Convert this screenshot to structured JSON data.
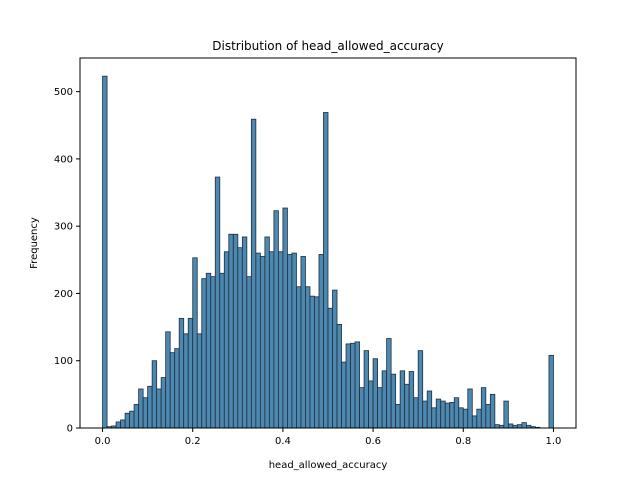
{
  "chart_data": {
    "type": "bar",
    "title": "Distribution of head_allowed_accuracy",
    "xlabel": "head_allowed_accuracy",
    "ylabel": "Frequency",
    "xlim": [
      -0.05,
      1.05
    ],
    "ylim": [
      0,
      550
    ],
    "xticks": [
      0.0,
      0.2,
      0.4,
      0.6,
      0.8,
      1.0
    ],
    "xtick_labels": [
      "0.0",
      "0.2",
      "0.4",
      "0.6",
      "0.8",
      "1.0"
    ],
    "yticks": [
      0,
      100,
      200,
      300,
      400,
      500
    ],
    "ytick_labels": [
      "0",
      "100",
      "200",
      "300",
      "400",
      "500"
    ],
    "grid": false,
    "bar_color": "#4c88b0",
    "edge_color": "#1f2f3f",
    "bin_width": 0.01,
    "bin_starts": [
      0.0,
      0.01,
      0.02,
      0.03,
      0.04,
      0.05,
      0.06,
      0.07,
      0.08,
      0.09,
      0.1,
      0.11,
      0.12,
      0.13,
      0.14,
      0.15,
      0.16,
      0.17,
      0.18,
      0.19,
      0.2,
      0.21,
      0.22,
      0.23,
      0.24,
      0.25,
      0.26,
      0.27,
      0.28,
      0.29,
      0.3,
      0.31,
      0.32,
      0.33,
      0.34,
      0.35,
      0.36,
      0.37,
      0.38,
      0.39,
      0.4,
      0.41,
      0.42,
      0.43,
      0.44,
      0.45,
      0.46,
      0.47,
      0.48,
      0.49,
      0.5,
      0.51,
      0.52,
      0.53,
      0.54,
      0.55,
      0.56,
      0.57,
      0.58,
      0.59,
      0.6,
      0.61,
      0.62,
      0.63,
      0.64,
      0.65,
      0.66,
      0.67,
      0.68,
      0.69,
      0.7,
      0.71,
      0.72,
      0.73,
      0.74,
      0.75,
      0.76,
      0.77,
      0.78,
      0.79,
      0.8,
      0.81,
      0.82,
      0.83,
      0.84,
      0.85,
      0.86,
      0.87,
      0.88,
      0.89,
      0.9,
      0.91,
      0.92,
      0.93,
      0.94,
      0.95,
      0.96,
      0.97,
      0.98,
      0.99
    ],
    "values": [
      523,
      2,
      3,
      9,
      12,
      22,
      25,
      35,
      58,
      45,
      62,
      100,
      58,
      75,
      143,
      112,
      118,
      163,
      140,
      163,
      253,
      140,
      222,
      230,
      225,
      373,
      230,
      262,
      288,
      288,
      268,
      284,
      225,
      459,
      260,
      255,
      284,
      262,
      323,
      262,
      327,
      258,
      260,
      210,
      255,
      210,
      196,
      195,
      258,
      469,
      178,
      205,
      154,
      98,
      125,
      126,
      128,
      60,
      115,
      70,
      103,
      60,
      85,
      133,
      80,
      35,
      85,
      65,
      84,
      45,
      115,
      40,
      55,
      30,
      43,
      40,
      37,
      38,
      45,
      30,
      28,
      58,
      18,
      28,
      60,
      35,
      50,
      5,
      4,
      40,
      6,
      4,
      5,
      8,
      4,
      2,
      1,
      0,
      0,
      108
    ]
  }
}
